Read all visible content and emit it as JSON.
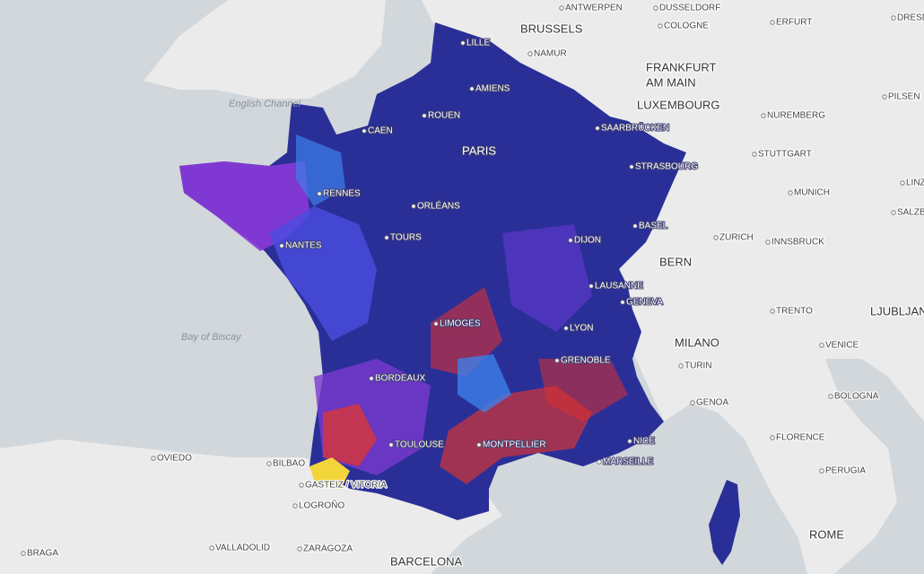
{
  "map": {
    "labels": [
      "ANTWERPEN",
      "DUSSELDORF",
      "ERFURT",
      "DRESDEN",
      "BRUSSELS",
      "COLOGNE",
      "LILLE",
      "NAMUR",
      "FRANKFURT",
      "AM MAIN",
      "AMIENS",
      "LUXEMBOURG",
      "PILSEN",
      "English Channel",
      "ROUEN",
      "SAARBRÜCKEN",
      "NUREMBERG",
      "CAEN",
      "PARIS",
      "STUTTGART",
      "STRASBOURG",
      "RENNES",
      "MUNICH",
      "LINZ",
      "ORLÉANS",
      "SALZBURG",
      "BASEL",
      "TOURS",
      "NANTES",
      "DIJON",
      "ZURICH",
      "INNSBRUCK",
      "BERN",
      "LAUSANNE",
      "GENEVA",
      "TRENTO",
      "LJUBLJANA",
      "LIMOGES",
      "LYON",
      "Bay of Biscay",
      "MILANO",
      "VENICE",
      "GRENOBLE",
      "TURIN",
      "BORDEAUX",
      "GENOA",
      "BOLOGNA",
      "TOULOUSE",
      "MONTPELLIER",
      "NICE",
      "FLORENCE",
      "OVIEDO",
      "BILBAO",
      "MARSEILLE",
      "GASTEIZ / VITORIA",
      "PERUGIA",
      "LOGROÑO",
      "BRAGA",
      "VALLADOLID",
      "ZARAGOZA",
      "BARCELONA",
      "ROME"
    ]
  }
}
